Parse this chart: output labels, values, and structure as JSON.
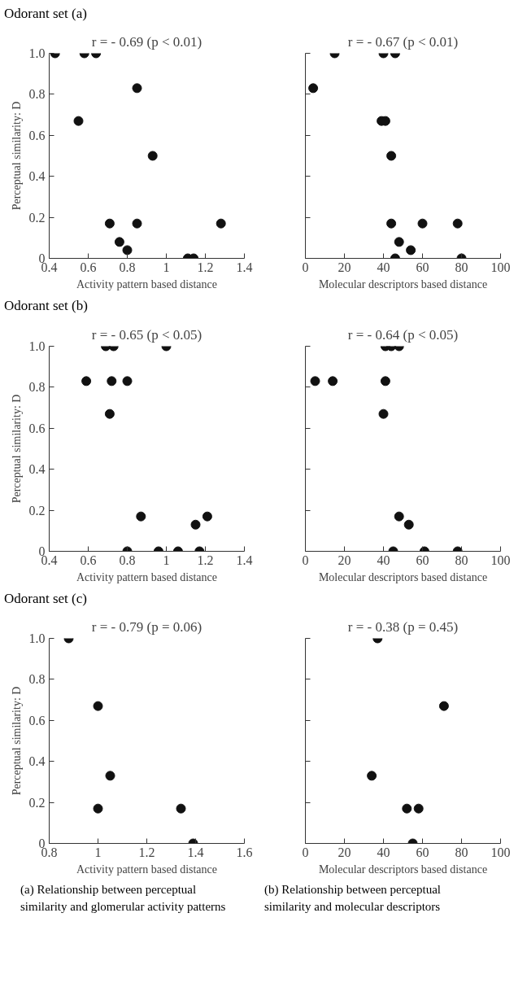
{
  "chart_data": [
    {
      "type": "scatter",
      "title": "Odorant set (a)",
      "subtitle": "r = - 0.69 (p < 0.01)",
      "xlabel": "Activity pattern based distance",
      "ylabel": "Perceptual similarity: D",
      "xlim": [
        0.4,
        1.4
      ],
      "xticks": [
        0.4,
        0.6,
        0.8,
        1,
        1.2,
        1.4
      ],
      "ylim": [
        0,
        1
      ],
      "yticks": [
        0,
        0.2,
        0.4,
        0.6,
        0.8,
        {
          "value": 1,
          "label": "1.0"
        }
      ],
      "grid": false,
      "marker": "circle",
      "series": [
        {
          "color": "#111111",
          "x": [
            0.43,
            0.58,
            0.64,
            0.85,
            0.55,
            0.93,
            0.71,
            0.85,
            1.28,
            0.76,
            0.8,
            1.11,
            1.14
          ],
          "values": [
            1.0,
            1.0,
            1.0,
            0.83,
            0.67,
            0.5,
            0.17,
            0.17,
            0.17,
            0.08,
            0.04,
            0,
            0
          ]
        }
      ]
    },
    {
      "type": "scatter",
      "title": "r = - 0.67 (p < 0.01)",
      "xlabel": "Molecular descriptors based distance",
      "xlim": [
        0,
        100
      ],
      "xticks": [
        0,
        20,
        40,
        60,
        80,
        100
      ],
      "ylim": [
        0,
        1
      ],
      "yticks": [
        {
          "value": 0,
          "label": null
        },
        {
          "value": 0.2,
          "label": null
        },
        {
          "value": 0.4,
          "label": null
        },
        {
          "value": 0.6,
          "label": null
        },
        {
          "value": 0.8,
          "label": null
        },
        {
          "value": 1,
          "label": null
        }
      ],
      "tick_labels": "x",
      "grid": false,
      "marker": "circle",
      "series": [
        {
          "color": "#111111",
          "x": [
            4,
            15,
            40,
            46,
            39,
            41,
            44,
            44,
            60,
            78,
            48,
            54,
            46,
            80
          ],
          "values": [
            0.83,
            1.0,
            1.0,
            1.0,
            0.67,
            0.67,
            0.5,
            0.17,
            0.17,
            0.17,
            0.08,
            0.04,
            0,
            0
          ]
        }
      ]
    },
    {
      "type": "scatter",
      "title": "Odorant set (b)",
      "subtitle": "r = - 0.65 (p < 0.05)",
      "xlabel": "Activity pattern based distance",
      "ylabel": "Perceptual similarity: D",
      "xlim": [
        0.4,
        1.4
      ],
      "xticks": [
        0.4,
        0.6,
        0.8,
        1,
        1.2,
        1.4
      ],
      "ylim": [
        0,
        1
      ],
      "yticks": [
        0,
        0.2,
        0.4,
        0.6,
        0.8,
        {
          "value": 1,
          "label": "1.0"
        }
      ],
      "grid": false,
      "marker": "circle",
      "series": [
        {
          "color": "#111111",
          "x": [
            0.69,
            0.73,
            1.0,
            0.59,
            0.72,
            0.8,
            0.71,
            0.87,
            1.21,
            1.15,
            0.8,
            0.96,
            1.06,
            1.17
          ],
          "values": [
            1.0,
            1.0,
            1.0,
            0.83,
            0.83,
            0.83,
            0.67,
            0.17,
            0.17,
            0.13,
            0,
            0,
            0,
            0
          ]
        }
      ]
    },
    {
      "type": "scatter",
      "title": "r = - 0.64 (p < 0.05)",
      "xlabel": "Molecular descriptors based distance",
      "xlim": [
        0,
        100
      ],
      "xticks": [
        0,
        20,
        40,
        60,
        80,
        100
      ],
      "ylim": [
        0,
        1
      ],
      "yticks": [
        {
          "value": 0,
          "label": null
        },
        {
          "value": 0.2,
          "label": null
        },
        {
          "value": 0.4,
          "label": null
        },
        {
          "value": 0.6,
          "label": null
        },
        {
          "value": 0.8,
          "label": null
        },
        {
          "value": 1,
          "label": null
        }
      ],
      "tick_labels": "x",
      "grid": false,
      "marker": "circle",
      "series": [
        {
          "color": "#111111",
          "x": [
            5,
            14,
            41,
            40,
            41,
            44,
            48,
            48,
            53,
            45,
            61,
            78
          ],
          "values": [
            0.83,
            0.83,
            0.83,
            0.67,
            1.0,
            1.0,
            1.0,
            0.17,
            0.13,
            0,
            0,
            0
          ]
        }
      ]
    },
    {
      "type": "scatter",
      "title": "Odorant set (c)",
      "subtitle": "r = - 0.79 (p = 0.06)",
      "xlabel": "Activity pattern based distance",
      "ylabel": "Perceptual similarity: D",
      "xlim": [
        0.8,
        1.6
      ],
      "xticks": [
        0.8,
        1,
        1.2,
        1.4,
        1.6
      ],
      "ylim": [
        0,
        1
      ],
      "yticks": [
        0,
        0.2,
        0.4,
        0.6,
        0.8,
        {
          "value": 1,
          "label": "1.0"
        }
      ],
      "grid": false,
      "marker": "circle",
      "annotations": [
        "(a) Relationship between perceptual similarity and glomerular activity patterns"
      ],
      "series": [
        {
          "color": "#111111",
          "x": [
            0.88,
            1.0,
            1.05,
            1.0,
            1.34,
            1.39
          ],
          "values": [
            1.0,
            0.67,
            0.33,
            0.17,
            0.17,
            0
          ]
        }
      ]
    },
    {
      "type": "scatter",
      "title": "r = - 0.38 (p = 0.45)",
      "xlabel": "Molecular descriptors based distance",
      "xlim": [
        0,
        100
      ],
      "xticks": [
        0,
        20,
        40,
        60,
        80,
        100
      ],
      "ylim": [
        0,
        1
      ],
      "yticks": [
        {
          "value": 0,
          "label": null
        },
        {
          "value": 0.2,
          "label": null
        },
        {
          "value": 0.4,
          "label": null
        },
        {
          "value": 0.6,
          "label": null
        },
        {
          "value": 0.8,
          "label": null
        },
        {
          "value": 1,
          "label": null
        }
      ],
      "tick_labels": "x",
      "grid": false,
      "marker": "circle",
      "annotations": [
        "(b) Relationship between perceptual similarity and molecular descriptors"
      ],
      "series": [
        {
          "color": "#111111",
          "x": [
            37,
            71,
            34,
            52,
            58,
            55
          ],
          "values": [
            1.0,
            0.67,
            0.33,
            0.17,
            0.17,
            0
          ]
        }
      ]
    }
  ]
}
